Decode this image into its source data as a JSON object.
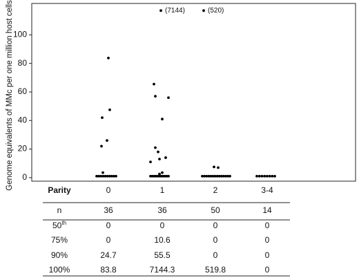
{
  "chart_data": {
    "type": "strip",
    "y_label": "Genome equivalents of MMc per one million host cells",
    "categories": [
      "0",
      "1",
      "2",
      "3-4"
    ],
    "series": [
      {
        "color": "#000000",
        "values": [
          83.8,
          47.5,
          42,
          26,
          22,
          3.5,
          1,
          1,
          1,
          1,
          1,
          1,
          1,
          1,
          1,
          1
        ]
      },
      {
        "color": "#000000",
        "values": [
          117,
          65.5,
          57,
          56,
          41,
          21,
          18,
          14,
          13,
          11,
          3.5,
          2.5,
          1,
          1,
          1,
          1,
          1,
          1,
          1,
          1,
          1,
          1,
          1
        ]
      },
      {
        "color": "#000000",
        "values": [
          117,
          7.5,
          7,
          1,
          1,
          1,
          1,
          1,
          1,
          1,
          1,
          1,
          1,
          1,
          1,
          1,
          1
        ]
      },
      {
        "color": "#000000",
        "values": [
          1,
          1,
          1,
          1,
          1,
          1,
          1,
          1
        ]
      }
    ],
    "annotations": [
      "(7144)",
      "(520)"
    ],
    "ylim": [
      -2.5,
      122
    ],
    "yticks": [
      0,
      20,
      40,
      60,
      80,
      100
    ]
  },
  "table": {
    "header_label": "Parity",
    "rows": [
      {
        "label": "n",
        "values": [
          36,
          36,
          50,
          14
        ]
      },
      {
        "label": "50",
        "label_sup": "th",
        "values": [
          0,
          0,
          0,
          0
        ]
      },
      {
        "label": "75%",
        "values": [
          0,
          10.6,
          0,
          0
        ]
      },
      {
        "label": "90%",
        "values": [
          24.7,
          55.5,
          0,
          0
        ]
      },
      {
        "label": "100%",
        "values": [
          83.8,
          7144.3,
          519.8,
          0
        ]
      }
    ]
  }
}
